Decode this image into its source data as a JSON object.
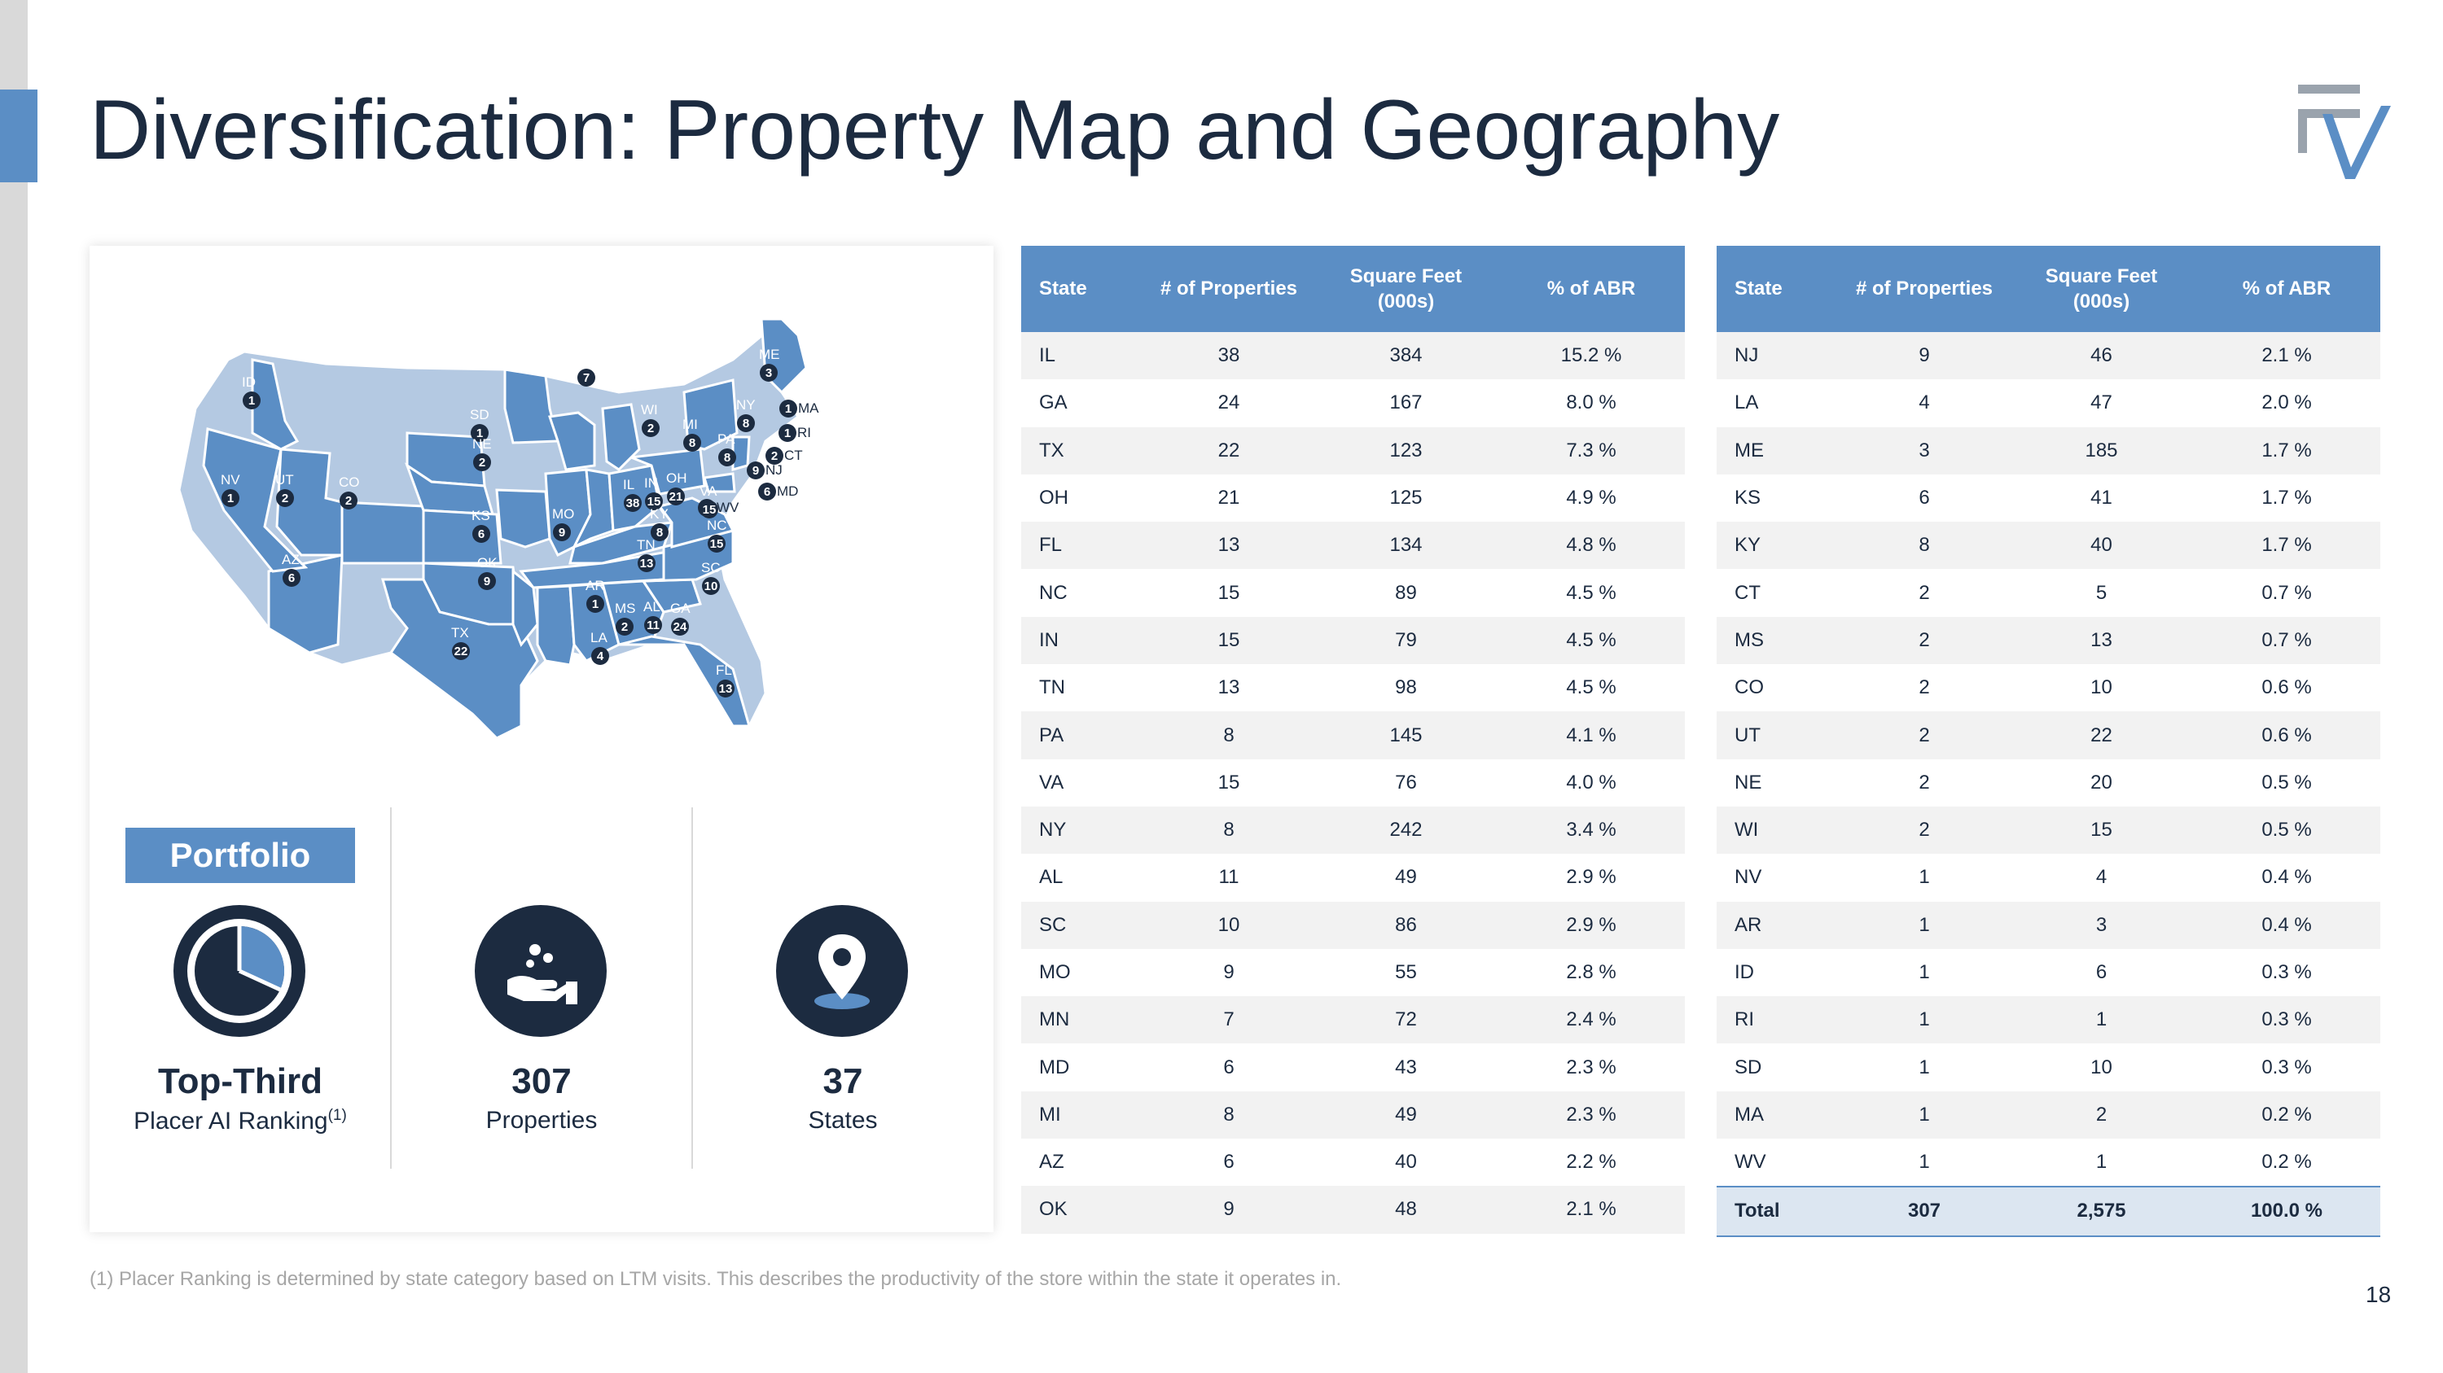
{
  "title": "Diversification: Property Map and Geography",
  "logo_name": "fv-logo",
  "colors": {
    "accent": "#5b8ec5",
    "navy": "#1c2b40",
    "light_state": "#b4c9e2",
    "stripe": "#f2f2f2",
    "total_row": "#dce6f1"
  },
  "map": {
    "markers": [
      {
        "state": "ME",
        "count": "3"
      },
      {
        "state": "NY",
        "count": "8"
      },
      {
        "state": "MA",
        "count": "1"
      },
      {
        "state": "RI",
        "count": "1"
      },
      {
        "state": "CT",
        "count": "2"
      },
      {
        "state": "NJ",
        "count": "9"
      },
      {
        "state": "MD",
        "count": "6"
      },
      {
        "state": "PA",
        "count": "8"
      },
      {
        "state": "MN",
        "count": "7"
      },
      {
        "state": "WI",
        "count": "2"
      },
      {
        "state": "MI",
        "count": "8"
      },
      {
        "state": "ID",
        "count": "1"
      },
      {
        "state": "SD",
        "count": "1"
      },
      {
        "state": "NE",
        "count": "2"
      },
      {
        "state": "NV",
        "count": "1"
      },
      {
        "state": "UT",
        "count": "2"
      },
      {
        "state": "CO",
        "count": "2"
      },
      {
        "state": "KS",
        "count": "6"
      },
      {
        "state": "MO",
        "count": "9"
      },
      {
        "state": "IL",
        "count": "38"
      },
      {
        "state": "IN",
        "count": "15"
      },
      {
        "state": "OH",
        "count": "21"
      },
      {
        "state": "WV",
        "count": "1"
      },
      {
        "state": "KY",
        "count": "8"
      },
      {
        "state": "VA",
        "count": "15"
      },
      {
        "state": "NC",
        "count": "15"
      },
      {
        "state": "TN",
        "count": "13"
      },
      {
        "state": "SC",
        "count": "10"
      },
      {
        "state": "AZ",
        "count": "6"
      },
      {
        "state": "OK",
        "count": "9"
      },
      {
        "state": "AR",
        "count": "1"
      },
      {
        "state": "MS",
        "count": "2"
      },
      {
        "state": "AL",
        "count": "11"
      },
      {
        "state": "GA",
        "count": "24"
      },
      {
        "state": "TX",
        "count": "22"
      },
      {
        "state": "LA",
        "count": "4"
      },
      {
        "state": "FL",
        "count": "13"
      }
    ]
  },
  "portfolio": {
    "badge": "Portfolio",
    "stats": [
      {
        "icon": "pie-chart-icon",
        "value": "Top-Third",
        "label": "Placer AI Ranking",
        "sup": "(1)"
      },
      {
        "icon": "hand-with-coins-icon",
        "value": "307",
        "label": "Properties",
        "sup": ""
      },
      {
        "icon": "map-pin-icon",
        "value": "37",
        "label": "States",
        "sup": ""
      }
    ]
  },
  "table_headers": {
    "state": "State",
    "properties": "# of Properties",
    "sqft_line1": "Square Feet",
    "sqft_line2": "(000s)",
    "abr": "% of ABR"
  },
  "table_left": [
    [
      "IL",
      "38",
      "384",
      "15.2 %"
    ],
    [
      "GA",
      "24",
      "167",
      "8.0 %"
    ],
    [
      "TX",
      "22",
      "123",
      "7.3 %"
    ],
    [
      "OH",
      "21",
      "125",
      "4.9 %"
    ],
    [
      "FL",
      "13",
      "134",
      "4.8 %"
    ],
    [
      "NC",
      "15",
      "89",
      "4.5 %"
    ],
    [
      "IN",
      "15",
      "79",
      "4.5 %"
    ],
    [
      "TN",
      "13",
      "98",
      "4.5 %"
    ],
    [
      "PA",
      "8",
      "145",
      "4.1 %"
    ],
    [
      "VA",
      "15",
      "76",
      "4.0 %"
    ],
    [
      "NY",
      "8",
      "242",
      "3.4 %"
    ],
    [
      "AL",
      "11",
      "49",
      "2.9 %"
    ],
    [
      "SC",
      "10",
      "86",
      "2.9 %"
    ],
    [
      "MO",
      "9",
      "55",
      "2.8 %"
    ],
    [
      "MN",
      "7",
      "72",
      "2.4 %"
    ],
    [
      "MD",
      "6",
      "43",
      "2.3 %"
    ],
    [
      "MI",
      "8",
      "49",
      "2.3 %"
    ],
    [
      "AZ",
      "6",
      "40",
      "2.2 %"
    ],
    [
      "OK",
      "9",
      "48",
      "2.1 %"
    ]
  ],
  "table_right": [
    [
      "NJ",
      "9",
      "46",
      "2.1 %"
    ],
    [
      "LA",
      "4",
      "47",
      "2.0 %"
    ],
    [
      "ME",
      "3",
      "185",
      "1.7 %"
    ],
    [
      "KS",
      "6",
      "41",
      "1.7 %"
    ],
    [
      "KY",
      "8",
      "40",
      "1.7 %"
    ],
    [
      "CT",
      "2",
      "5",
      "0.7 %"
    ],
    [
      "MS",
      "2",
      "13",
      "0.7 %"
    ],
    [
      "CO",
      "2",
      "10",
      "0.6 %"
    ],
    [
      "UT",
      "2",
      "22",
      "0.6 %"
    ],
    [
      "NE",
      "2",
      "20",
      "0.5 %"
    ],
    [
      "WI",
      "2",
      "15",
      "0.5 %"
    ],
    [
      "NV",
      "1",
      "4",
      "0.4 %"
    ],
    [
      "AR",
      "1",
      "3",
      "0.4 %"
    ],
    [
      "ID",
      "1",
      "6",
      "0.3 %"
    ],
    [
      "RI",
      "1",
      "1",
      "0.3 %"
    ],
    [
      "SD",
      "1",
      "10",
      "0.3 %"
    ],
    [
      "MA",
      "1",
      "2",
      "0.2 %"
    ],
    [
      "WV",
      "1",
      "1",
      "0.2 %"
    ]
  ],
  "table_total": [
    "Total",
    "307",
    "2,575",
    "100.0 %"
  ],
  "footnote": "(1) Placer Ranking is determined by state category based on LTM visits. This describes the productivity of the store within the state it operates in.",
  "page_number": "18"
}
